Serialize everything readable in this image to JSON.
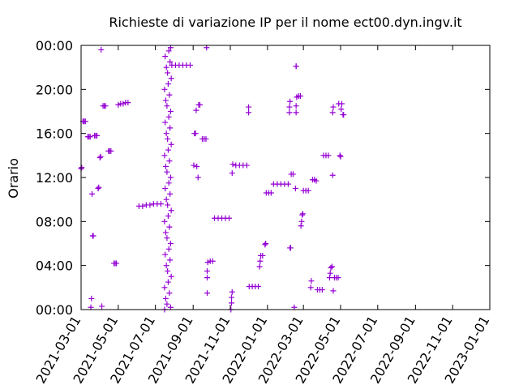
{
  "chart_data": {
    "type": "scatter",
    "title": "Richieste di variazione IP per il nome ect00.dyn.ingv.it",
    "xlabel": "",
    "ylabel": "Orario",
    "x_ticks": [
      "2021-03-01",
      "2021-05-01",
      "2021-07-01",
      "2021-09-01",
      "2021-11-01",
      "2022-01-01",
      "2022-03-01",
      "2022-05-01",
      "2022-07-01",
      "2022-09-01",
      "2022-11-01",
      "2023-01-01"
    ],
    "y_ticks": [
      "00:00",
      "04:00",
      "08:00",
      "12:00",
      "16:00",
      "20:00",
      "00:00"
    ],
    "xlim": [
      "2021-03-01",
      "2023-01-01"
    ],
    "ylim": [
      0,
      24
    ],
    "grid": false,
    "color": "#9400d3",
    "marker": "plus",
    "points": [
      {
        "x": "2021-03-01",
        "y": 12.8
      },
      {
        "x": "2021-03-02",
        "y": 12.9
      },
      {
        "x": "2021-03-04",
        "y": 17.1
      },
      {
        "x": "2021-03-06",
        "y": 17.1
      },
      {
        "x": "2021-03-08",
        "y": 17.1
      },
      {
        "x": "2021-03-12",
        "y": 15.7
      },
      {
        "x": "2021-03-14",
        "y": 15.7
      },
      {
        "x": "2021-03-16",
        "y": 15.7
      },
      {
        "x": "2021-03-17",
        "y": 0.2
      },
      {
        "x": "2021-03-18",
        "y": 1.0
      },
      {
        "x": "2021-03-19",
        "y": 10.5
      },
      {
        "x": "2021-03-20",
        "y": 6.7
      },
      {
        "x": "2021-03-21",
        "y": 6.7
      },
      {
        "x": "2021-03-23",
        "y": 15.8
      },
      {
        "x": "2021-03-25",
        "y": 15.8
      },
      {
        "x": "2021-03-27",
        "y": 15.8
      },
      {
        "x": "2021-03-29",
        "y": 11.0
      },
      {
        "x": "2021-03-30",
        "y": 11.1
      },
      {
        "x": "2021-04-01",
        "y": 13.8
      },
      {
        "x": "2021-04-02",
        "y": 13.9
      },
      {
        "x": "2021-04-03",
        "y": 23.6
      },
      {
        "x": "2021-04-04",
        "y": 0.3
      },
      {
        "x": "2021-04-06",
        "y": 18.5
      },
      {
        "x": "2021-04-08",
        "y": 18.5
      },
      {
        "x": "2021-04-10",
        "y": 18.5
      },
      {
        "x": "2021-04-15",
        "y": 14.4
      },
      {
        "x": "2021-04-17",
        "y": 14.4
      },
      {
        "x": "2021-04-19",
        "y": 14.4
      },
      {
        "x": "2021-04-24",
        "y": 4.2
      },
      {
        "x": "2021-04-26",
        "y": 4.2
      },
      {
        "x": "2021-04-28",
        "y": 4.2
      },
      {
        "x": "2021-05-01",
        "y": 18.6
      },
      {
        "x": "2021-05-05",
        "y": 18.7
      },
      {
        "x": "2021-05-09",
        "y": 18.7
      },
      {
        "x": "2021-05-13",
        "y": 18.8
      },
      {
        "x": "2021-05-17",
        "y": 18.8
      },
      {
        "x": "2021-06-04",
        "y": 9.4
      },
      {
        "x": "2021-06-10",
        "y": 9.4
      },
      {
        "x": "2021-06-16",
        "y": 9.5
      },
      {
        "x": "2021-06-22",
        "y": 9.5
      },
      {
        "x": "2021-06-28",
        "y": 9.6
      },
      {
        "x": "2021-07-04",
        "y": 9.6
      },
      {
        "x": "2021-07-10",
        "y": 9.6
      },
      {
        "x": "2021-07-16",
        "y": 0.0
      },
      {
        "x": "2021-07-16",
        "y": 2.0
      },
      {
        "x": "2021-07-17",
        "y": 5.0
      },
      {
        "x": "2021-07-16",
        "y": 8.0
      },
      {
        "x": "2021-07-17",
        "y": 11.0
      },
      {
        "x": "2021-07-16",
        "y": 14.0
      },
      {
        "x": "2021-07-17",
        "y": 17.0
      },
      {
        "x": "2021-07-16",
        "y": 20.0
      },
      {
        "x": "2021-07-17",
        "y": 23.0
      },
      {
        "x": "2021-07-18",
        "y": 1.0
      },
      {
        "x": "2021-07-19",
        "y": 4.0
      },
      {
        "x": "2021-07-18",
        "y": 7.0
      },
      {
        "x": "2021-07-19",
        "y": 10.0
      },
      {
        "x": "2021-07-18",
        "y": 13.0
      },
      {
        "x": "2021-07-19",
        "y": 16.0
      },
      {
        "x": "2021-07-18",
        "y": 19.0
      },
      {
        "x": "2021-07-19",
        "y": 22.0
      },
      {
        "x": "2021-07-20",
        "y": 0.5
      },
      {
        "x": "2021-07-21",
        "y": 3.5
      },
      {
        "x": "2021-07-20",
        "y": 6.5
      },
      {
        "x": "2021-07-21",
        "y": 9.5
      },
      {
        "x": "2021-07-20",
        "y": 12.5
      },
      {
        "x": "2021-07-21",
        "y": 15.5
      },
      {
        "x": "2021-07-20",
        "y": 18.5
      },
      {
        "x": "2021-07-21",
        "y": 21.5
      },
      {
        "x": "2021-07-22",
        "y": 2.5
      },
      {
        "x": "2021-07-23",
        "y": 5.5
      },
      {
        "x": "2021-07-22",
        "y": 8.5
      },
      {
        "x": "2021-07-23",
        "y": 11.5
      },
      {
        "x": "2021-07-22",
        "y": 14.5
      },
      {
        "x": "2021-07-23",
        "y": 17.5
      },
      {
        "x": "2021-07-22",
        "y": 20.5
      },
      {
        "x": "2021-07-23",
        "y": 23.5
      },
      {
        "x": "2021-07-24",
        "y": 1.5
      },
      {
        "x": "2021-07-25",
        "y": 4.5
      },
      {
        "x": "2021-07-24",
        "y": 7.5
      },
      {
        "x": "2021-07-25",
        "y": 10.5
      },
      {
        "x": "2021-07-24",
        "y": 13.5
      },
      {
        "x": "2021-07-25",
        "y": 16.5
      },
      {
        "x": "2021-07-24",
        "y": 19.5
      },
      {
        "x": "2021-07-25",
        "y": 22.5
      },
      {
        "x": "2021-07-26",
        "y": 0.2
      },
      {
        "x": "2021-07-27",
        "y": 3.0
      },
      {
        "x": "2021-07-26",
        "y": 6.0
      },
      {
        "x": "2021-07-27",
        "y": 9.0
      },
      {
        "x": "2021-07-26",
        "y": 12.0
      },
      {
        "x": "2021-07-27",
        "y": 15.0
      },
      {
        "x": "2021-07-26",
        "y": 18.0
      },
      {
        "x": "2021-07-27",
        "y": 21.0
      },
      {
        "x": "2021-07-26",
        "y": 23.8
      },
      {
        "x": "2021-07-28",
        "y": 22.2
      },
      {
        "x": "2021-08-03",
        "y": 22.2
      },
      {
        "x": "2021-08-09",
        "y": 22.2
      },
      {
        "x": "2021-08-15",
        "y": 22.2
      },
      {
        "x": "2021-08-21",
        "y": 22.2
      },
      {
        "x": "2021-08-27",
        "y": 22.2
      },
      {
        "x": "2021-09-03",
        "y": 16.0
      },
      {
        "x": "2021-09-05",
        "y": 16.0
      },
      {
        "x": "2021-09-06",
        "y": 18.1
      },
      {
        "x": "2021-09-10",
        "y": 18.6
      },
      {
        "x": "2021-09-12",
        "y": 18.6
      },
      {
        "x": "2021-09-02",
        "y": 13.1
      },
      {
        "x": "2021-09-07",
        "y": 13.0
      },
      {
        "x": "2021-09-09",
        "y": 12.0
      },
      {
        "x": "2021-09-16",
        "y": 15.5
      },
      {
        "x": "2021-09-19",
        "y": 15.5
      },
      {
        "x": "2021-09-22",
        "y": 15.5
      },
      {
        "x": "2021-09-23",
        "y": 23.8
      },
      {
        "x": "2021-09-24",
        "y": 1.5
      },
      {
        "x": "2021-09-24",
        "y": 2.9
      },
      {
        "x": "2021-09-24",
        "y": 3.5
      },
      {
        "x": "2021-09-25",
        "y": 4.3
      },
      {
        "x": "2021-09-29",
        "y": 4.4
      },
      {
        "x": "2021-10-03",
        "y": 4.4
      },
      {
        "x": "2021-10-06",
        "y": 8.3
      },
      {
        "x": "2021-10-12",
        "y": 8.3
      },
      {
        "x": "2021-10-18",
        "y": 8.3
      },
      {
        "x": "2021-10-24",
        "y": 8.3
      },
      {
        "x": "2021-10-30",
        "y": 8.3
      },
      {
        "x": "2021-11-02",
        "y": 0.0
      },
      {
        "x": "2021-11-03",
        "y": 0.6
      },
      {
        "x": "2021-11-03",
        "y": 1.1
      },
      {
        "x": "2021-11-04",
        "y": 1.6
      },
      {
        "x": "2021-11-04",
        "y": 12.4
      },
      {
        "x": "2021-11-05",
        "y": 13.2
      },
      {
        "x": "2021-11-10",
        "y": 13.1
      },
      {
        "x": "2021-11-16",
        "y": 13.1
      },
      {
        "x": "2021-11-22",
        "y": 13.1
      },
      {
        "x": "2021-11-28",
        "y": 13.1
      },
      {
        "x": "2021-12-01",
        "y": 17.9
      },
      {
        "x": "2021-12-01",
        "y": 18.4
      },
      {
        "x": "2021-12-02",
        "y": 2.1
      },
      {
        "x": "2021-12-07",
        "y": 2.1
      },
      {
        "x": "2021-12-12",
        "y": 2.1
      },
      {
        "x": "2021-12-17",
        "y": 2.1
      },
      {
        "x": "2021-12-19",
        "y": 3.9
      },
      {
        "x": "2021-12-20",
        "y": 4.4
      },
      {
        "x": "2021-12-21",
        "y": 4.9
      },
      {
        "x": "2021-12-24",
        "y": 4.9
      },
      {
        "x": "2021-12-28",
        "y": 5.9
      },
      {
        "x": "2021-12-29",
        "y": 6.0
      },
      {
        "x": "2021-12-30",
        "y": 10.6
      },
      {
        "x": "2022-01-03",
        "y": 10.6
      },
      {
        "x": "2022-01-07",
        "y": 10.6
      },
      {
        "x": "2022-01-11",
        "y": 11.4
      },
      {
        "x": "2022-01-17",
        "y": 11.4
      },
      {
        "x": "2022-01-23",
        "y": 11.4
      },
      {
        "x": "2022-01-29",
        "y": 11.4
      },
      {
        "x": "2022-02-04",
        "y": 11.4
      },
      {
        "x": "2022-02-07",
        "y": 5.6
      },
      {
        "x": "2022-02-08",
        "y": 5.6
      },
      {
        "x": "2022-02-06",
        "y": 17.9
      },
      {
        "x": "2022-02-06",
        "y": 18.4
      },
      {
        "x": "2022-02-07",
        "y": 18.9
      },
      {
        "x": "2022-02-09",
        "y": 12.3
      },
      {
        "x": "2022-02-12",
        "y": 12.3
      },
      {
        "x": "2022-02-14",
        "y": 0.2
      },
      {
        "x": "2022-02-16",
        "y": 11.0
      },
      {
        "x": "2022-02-17",
        "y": 17.9
      },
      {
        "x": "2022-02-17",
        "y": 18.5
      },
      {
        "x": "2022-02-18",
        "y": 19.3
      },
      {
        "x": "2022-02-21",
        "y": 19.4
      },
      {
        "x": "2022-02-24",
        "y": 19.4
      },
      {
        "x": "2022-02-17",
        "y": 22.1
      },
      {
        "x": "2022-02-17",
        "y": 22.1
      },
      {
        "x": "2022-02-25",
        "y": 7.6
      },
      {
        "x": "2022-02-26",
        "y": 8.0
      },
      {
        "x": "2022-02-27",
        "y": 8.6
      },
      {
        "x": "2022-02-28",
        "y": 8.7
      },
      {
        "x": "2022-03-01",
        "y": 10.8
      },
      {
        "x": "2022-03-05",
        "y": 10.8
      },
      {
        "x": "2022-03-09",
        "y": 10.8
      },
      {
        "x": "2022-03-13",
        "y": 2.0
      },
      {
        "x": "2022-03-14",
        "y": 2.6
      },
      {
        "x": "2022-03-16",
        "y": 11.8
      },
      {
        "x": "2022-03-19",
        "y": 11.8
      },
      {
        "x": "2022-03-22",
        "y": 11.7
      },
      {
        "x": "2022-03-24",
        "y": 1.8
      },
      {
        "x": "2022-03-28",
        "y": 1.8
      },
      {
        "x": "2022-04-01",
        "y": 1.8
      },
      {
        "x": "2022-04-03",
        "y": 14.0
      },
      {
        "x": "2022-04-07",
        "y": 14.0
      },
      {
        "x": "2022-04-11",
        "y": 14.0
      },
      {
        "x": "2022-04-13",
        "y": 2.9
      },
      {
        "x": "2022-04-14",
        "y": 3.3
      },
      {
        "x": "2022-04-15",
        "y": 3.8
      },
      {
        "x": "2022-04-17",
        "y": 3.9
      },
      {
        "x": "2022-04-19",
        "y": 1.7
      },
      {
        "x": "2022-04-18",
        "y": 12.2
      },
      {
        "x": "2022-04-18",
        "y": 17.9
      },
      {
        "x": "2022-04-19",
        "y": 18.4
      },
      {
        "x": "2022-04-21",
        "y": 2.9
      },
      {
        "x": "2022-04-24",
        "y": 2.9
      },
      {
        "x": "2022-04-27",
        "y": 2.9
      },
      {
        "x": "2022-04-28",
        "y": 18.7
      },
      {
        "x": "2022-04-30",
        "y": 14.0
      },
      {
        "x": "2022-05-01",
        "y": 13.9
      },
      {
        "x": "2022-05-02",
        "y": 18.2
      },
      {
        "x": "2022-05-03",
        "y": 18.7
      },
      {
        "x": "2022-05-05",
        "y": 17.7
      },
      {
        "x": "2022-05-06",
        "y": 17.7
      }
    ]
  }
}
